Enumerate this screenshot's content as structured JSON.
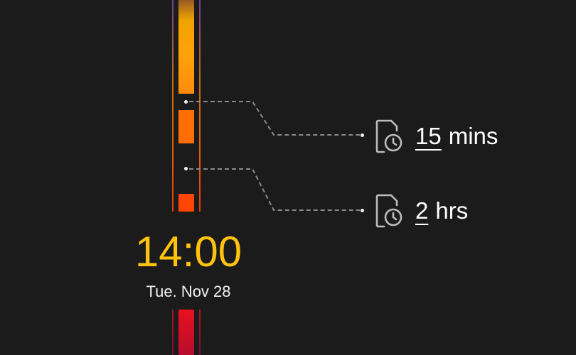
{
  "clock": {
    "time": "14:00",
    "date": "Tue. Nov 28"
  },
  "reminders": [
    {
      "value": "15",
      "unit": "mins",
      "icon": "document-clock-icon"
    },
    {
      "value": "2",
      "unit": "hrs",
      "icon": "document-clock-icon"
    }
  ],
  "colors": {
    "background": "#1b1b1b",
    "time_text": "#ffc20e",
    "segment_amber": "#ffa10a",
    "segment_orange": "#ff6d05",
    "segment_red_orange": "#ff4404",
    "segment_red": "#e8101e",
    "connector": "#8a8a8a"
  }
}
